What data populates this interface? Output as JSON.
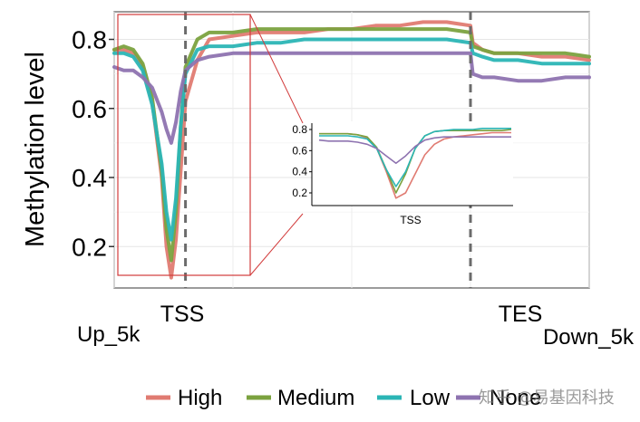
{
  "chart_data": {
    "type": "line",
    "ylabel": "Methylation level",
    "ylim": [
      0.08,
      0.88
    ],
    "y_ticks": [
      0.2,
      0.4,
      0.6,
      0.8
    ],
    "x_labels": {
      "start": "Up_5k",
      "tss": "TSS",
      "tes": "TES",
      "end": "Down_5k"
    },
    "x": [
      0,
      4,
      8,
      12,
      16,
      20,
      22,
      24,
      26,
      28,
      30,
      35,
      40,
      50,
      60,
      70,
      80,
      90,
      100,
      110,
      120,
      130,
      140,
      150,
      151,
      155,
      160,
      170,
      180,
      190,
      200
    ],
    "tss_x": 30,
    "tes_x": 150,
    "grid": true,
    "legend_position": "bottom",
    "series": [
      {
        "name": "High",
        "color": "#E07B72",
        "values": [
          0.77,
          0.77,
          0.76,
          0.72,
          0.62,
          0.4,
          0.2,
          0.11,
          0.22,
          0.42,
          0.62,
          0.74,
          0.8,
          0.81,
          0.82,
          0.82,
          0.82,
          0.83,
          0.83,
          0.84,
          0.84,
          0.85,
          0.85,
          0.84,
          0.79,
          0.77,
          0.76,
          0.76,
          0.75,
          0.75,
          0.74
        ]
      },
      {
        "name": "Medium",
        "color": "#7BA23F",
        "values": [
          0.77,
          0.78,
          0.77,
          0.73,
          0.63,
          0.42,
          0.25,
          0.16,
          0.3,
          0.55,
          0.72,
          0.8,
          0.82,
          0.82,
          0.83,
          0.83,
          0.83,
          0.83,
          0.83,
          0.83,
          0.83,
          0.83,
          0.83,
          0.82,
          0.78,
          0.77,
          0.76,
          0.76,
          0.76,
          0.76,
          0.75
        ]
      },
      {
        "name": "Low",
        "color": "#2BB5B5",
        "values": [
          0.76,
          0.76,
          0.75,
          0.71,
          0.61,
          0.44,
          0.3,
          0.22,
          0.34,
          0.55,
          0.7,
          0.77,
          0.78,
          0.78,
          0.79,
          0.79,
          0.8,
          0.8,
          0.8,
          0.8,
          0.8,
          0.8,
          0.8,
          0.79,
          0.76,
          0.75,
          0.74,
          0.74,
          0.73,
          0.73,
          0.73
        ]
      },
      {
        "name": "None",
        "color": "#8E73B0",
        "values": [
          0.72,
          0.71,
          0.71,
          0.69,
          0.66,
          0.59,
          0.54,
          0.5,
          0.56,
          0.65,
          0.71,
          0.74,
          0.75,
          0.76,
          0.76,
          0.76,
          0.76,
          0.76,
          0.76,
          0.76,
          0.76,
          0.76,
          0.76,
          0.76,
          0.7,
          0.69,
          0.69,
          0.68,
          0.68,
          0.69,
          0.69
        ]
      }
    ],
    "inset": {
      "xlabel": "TSS",
      "y_ticks": [
        0.2,
        0.4,
        0.6,
        0.8
      ],
      "ylim": [
        0.08,
        0.86
      ],
      "x": [
        0,
        10,
        20,
        30,
        40,
        50,
        60,
        70,
        80,
        90,
        100,
        110,
        120,
        130,
        140,
        150,
        160,
        170,
        180,
        190,
        200
      ],
      "series": [
        {
          "name": "High",
          "values": [
            0.76,
            0.76,
            0.76,
            0.76,
            0.75,
            0.72,
            0.62,
            0.4,
            0.15,
            0.2,
            0.38,
            0.56,
            0.66,
            0.71,
            0.73,
            0.74,
            0.75,
            0.76,
            0.77,
            0.77,
            0.77
          ]
        },
        {
          "name": "Medium",
          "values": [
            0.76,
            0.76,
            0.76,
            0.76,
            0.75,
            0.73,
            0.63,
            0.42,
            0.2,
            0.38,
            0.62,
            0.74,
            0.78,
            0.79,
            0.79,
            0.79,
            0.79,
            0.79,
            0.79,
            0.79,
            0.8
          ]
        },
        {
          "name": "Low",
          "values": [
            0.74,
            0.74,
            0.74,
            0.74,
            0.73,
            0.71,
            0.62,
            0.42,
            0.26,
            0.4,
            0.62,
            0.74,
            0.78,
            0.79,
            0.8,
            0.8,
            0.8,
            0.81,
            0.81,
            0.81,
            0.81
          ]
        },
        {
          "name": "None",
          "values": [
            0.7,
            0.69,
            0.69,
            0.69,
            0.68,
            0.66,
            0.62,
            0.55,
            0.48,
            0.55,
            0.64,
            0.7,
            0.72,
            0.73,
            0.73,
            0.73,
            0.73,
            0.73,
            0.73,
            0.73,
            0.73
          ]
        }
      ]
    }
  },
  "watermark": "知乎 @易基因科技"
}
